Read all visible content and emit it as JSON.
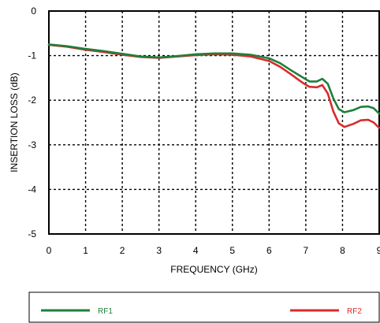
{
  "chart_data": {
    "type": "line",
    "xlabel": "FREQUENCY (GHz)",
    "ylabel": "INSERTION LOSS  (dB)",
    "xlim": [
      0,
      9
    ],
    "ylim": [
      -5,
      0
    ],
    "x_ticks": [
      "0",
      "1",
      "2",
      "3",
      "4",
      "5",
      "6",
      "7",
      "8",
      "9"
    ],
    "y_ticks": [
      "0",
      "-1",
      "-2",
      "-3",
      "-4",
      "-5"
    ],
    "grid": true,
    "legend_position": "bottom",
    "series": [
      {
        "name": "RF1",
        "color": "#1e7f3c",
        "points": [
          [
            0,
            -0.75
          ],
          [
            0.5,
            -0.79
          ],
          [
            1,
            -0.85
          ],
          [
            1.5,
            -0.9
          ],
          [
            2,
            -0.96
          ],
          [
            2.5,
            -1.02
          ],
          [
            3,
            -1.04
          ],
          [
            3.5,
            -1.01
          ],
          [
            4,
            -0.97
          ],
          [
            4.5,
            -0.95
          ],
          [
            5,
            -0.95
          ],
          [
            5.5,
            -0.98
          ],
          [
            6,
            -1.06
          ],
          [
            6.3,
            -1.17
          ],
          [
            6.6,
            -1.33
          ],
          [
            6.9,
            -1.48
          ],
          [
            7.1,
            -1.58
          ],
          [
            7.3,
            -1.58
          ],
          [
            7.45,
            -1.52
          ],
          [
            7.6,
            -1.63
          ],
          [
            7.75,
            -1.96
          ],
          [
            7.9,
            -2.2
          ],
          [
            8.05,
            -2.27
          ],
          [
            8.3,
            -2.22
          ],
          [
            8.5,
            -2.15
          ],
          [
            8.7,
            -2.14
          ],
          [
            8.85,
            -2.18
          ],
          [
            9,
            -2.3
          ]
        ]
      },
      {
        "name": "RF2",
        "color": "#d92b2b",
        "points": [
          [
            0,
            -0.76
          ],
          [
            0.5,
            -0.8
          ],
          [
            1,
            -0.87
          ],
          [
            1.5,
            -0.92
          ],
          [
            2,
            -0.98
          ],
          [
            2.5,
            -1.03
          ],
          [
            3,
            -1.05
          ],
          [
            3.5,
            -1.02
          ],
          [
            4,
            -0.99
          ],
          [
            4.5,
            -0.97
          ],
          [
            5,
            -0.98
          ],
          [
            5.5,
            -1.02
          ],
          [
            6,
            -1.12
          ],
          [
            6.3,
            -1.25
          ],
          [
            6.6,
            -1.42
          ],
          [
            6.9,
            -1.6
          ],
          [
            7.1,
            -1.7
          ],
          [
            7.3,
            -1.71
          ],
          [
            7.45,
            -1.66
          ],
          [
            7.6,
            -1.85
          ],
          [
            7.75,
            -2.25
          ],
          [
            7.9,
            -2.52
          ],
          [
            8.05,
            -2.6
          ],
          [
            8.3,
            -2.53
          ],
          [
            8.5,
            -2.45
          ],
          [
            8.7,
            -2.44
          ],
          [
            8.85,
            -2.5
          ],
          [
            9,
            -2.62
          ]
        ]
      }
    ]
  }
}
